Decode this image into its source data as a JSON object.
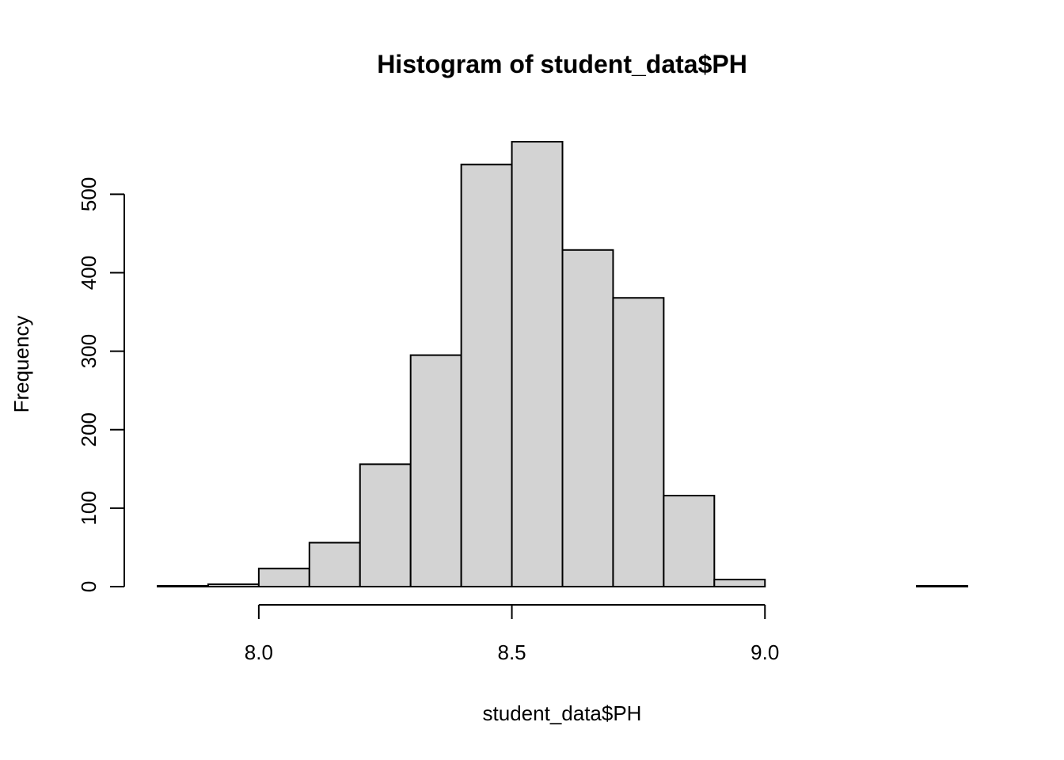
{
  "chart_data": {
    "type": "bar",
    "title": "Histogram of student_data$PH",
    "xlabel": "student_data$PH",
    "ylabel": "Frequency",
    "bins": [
      {
        "x0": 7.8,
        "x1": 7.9,
        "count": 1
      },
      {
        "x0": 7.9,
        "x1": 8.0,
        "count": 3
      },
      {
        "x0": 8.0,
        "x1": 8.1,
        "count": 23
      },
      {
        "x0": 8.1,
        "x1": 8.2,
        "count": 56
      },
      {
        "x0": 8.2,
        "x1": 8.3,
        "count": 156
      },
      {
        "x0": 8.3,
        "x1": 8.4,
        "count": 295
      },
      {
        "x0": 8.4,
        "x1": 8.5,
        "count": 538
      },
      {
        "x0": 8.5,
        "x1": 8.6,
        "count": 567
      },
      {
        "x0": 8.6,
        "x1": 8.7,
        "count": 429
      },
      {
        "x0": 8.7,
        "x1": 8.8,
        "count": 368
      },
      {
        "x0": 8.8,
        "x1": 8.9,
        "count": 116
      },
      {
        "x0": 8.9,
        "x1": 9.0,
        "count": 9
      },
      {
        "x0": 9.0,
        "x1": 9.1,
        "count": 0
      },
      {
        "x0": 9.1,
        "x1": 9.2,
        "count": 0
      },
      {
        "x0": 9.2,
        "x1": 9.3,
        "count": 0
      },
      {
        "x0": 9.3,
        "x1": 9.4,
        "count": 1
      }
    ],
    "xlim": [
      7.8,
      9.4
    ],
    "ylim": [
      0,
      567
    ],
    "x_ticks": [
      {
        "value": 8.0,
        "label": "8.0"
      },
      {
        "value": 8.5,
        "label": "8.5"
      },
      {
        "value": 9.0,
        "label": "9.0"
      }
    ],
    "y_ticks": [
      {
        "value": 0,
        "label": "0"
      },
      {
        "value": 100,
        "label": "100"
      },
      {
        "value": 200,
        "label": "200"
      },
      {
        "value": 300,
        "label": "300"
      },
      {
        "value": 400,
        "label": "400"
      },
      {
        "value": 500,
        "label": "500"
      }
    ],
    "grid": false,
    "bar_fill": "#d3d3d3",
    "bar_stroke": "#000000"
  }
}
